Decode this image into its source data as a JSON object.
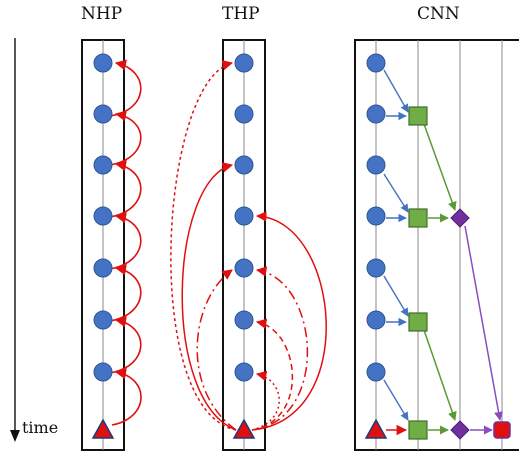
{
  "panels": {
    "nhp": {
      "title": "NHP"
    },
    "thp": {
      "title": "THP"
    },
    "cnn": {
      "title": "CNN"
    }
  },
  "axis": {
    "label": "time"
  },
  "colors": {
    "event": "#4472C4",
    "event_edge": "#2F5597",
    "target": "#E01010",
    "target_edge": "#1F3A7A",
    "influence": "#E01010",
    "conv_node": "#70AD47",
    "conv_edge": "#3E6E2A",
    "conv_arrow": "#5B9A36",
    "layer2_node": "#7030A0",
    "layer2_arrow": "#8A4CC0",
    "event_arrow": "#4472C4",
    "frame": "#111111",
    "guide": "#888888"
  },
  "icons": {
    "event": "circle",
    "target": "triangle",
    "conv_node": "square",
    "layer2_node": "diamond",
    "final_node": "rounded-square"
  }
}
